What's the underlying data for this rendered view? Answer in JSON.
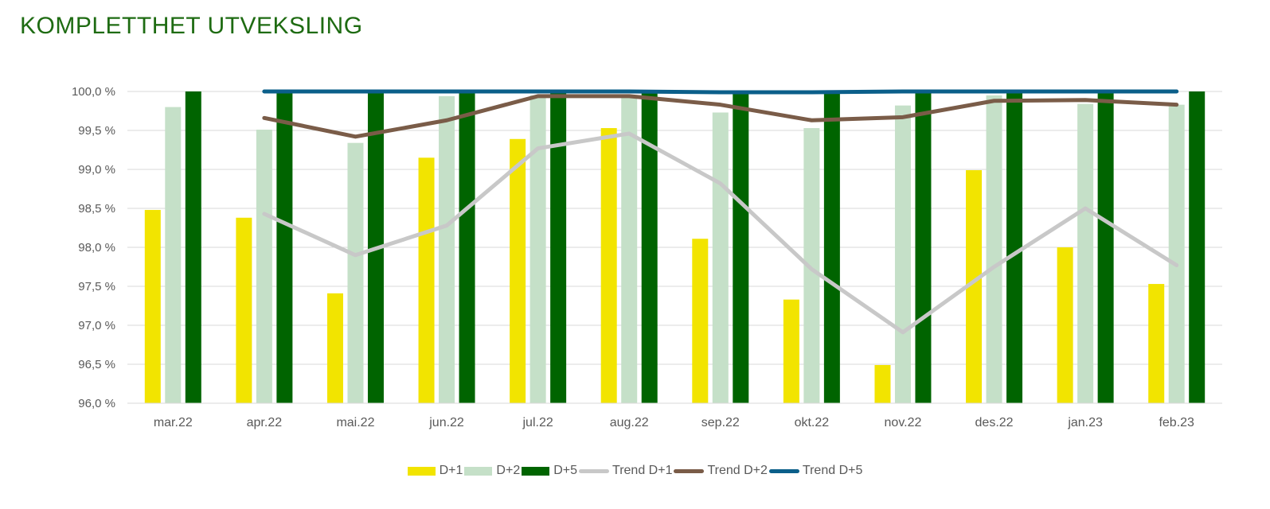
{
  "title": "KOMPLETTHET UTVEKSLING",
  "chart_data": {
    "type": "bar",
    "title": "KOMPLETTHET UTVEKSLING",
    "xlabel": "",
    "ylabel": "",
    "ylim": [
      96.0,
      100.0
    ],
    "y_ticks": [
      "96,0 %",
      "96,5 %",
      "97,0 %",
      "97,5 %",
      "98,0 %",
      "98,5 %",
      "99,0 %",
      "99,5 %",
      "100,0 %"
    ],
    "grid": true,
    "legend_position": "bottom",
    "categories": [
      "mar.22",
      "apr.22",
      "mai.22",
      "jun.22",
      "jul.22",
      "aug.22",
      "sep.22",
      "okt.22",
      "nov.22",
      "des.22",
      "jan.23",
      "feb.23"
    ],
    "series": [
      {
        "name": "D+1",
        "type": "bar",
        "color": "#f2e400",
        "values": [
          98.48,
          98.38,
          97.41,
          99.15,
          99.39,
          99.53,
          98.11,
          97.33,
          96.49,
          98.99,
          98.0,
          97.53
        ]
      },
      {
        "name": "D+2",
        "type": "bar",
        "color": "#c5e0c8",
        "values": [
          99.8,
          99.51,
          99.34,
          99.94,
          99.95,
          99.93,
          99.73,
          99.53,
          99.82,
          99.95,
          99.84,
          99.83
        ]
      },
      {
        "name": "D+5",
        "type": "bar",
        "color": "#006400",
        "values": [
          100.0,
          100.0,
          100.0,
          100.0,
          100.0,
          100.0,
          100.0,
          100.0,
          100.0,
          100.0,
          100.0,
          100.0
        ]
      },
      {
        "name": "Trend D+1",
        "type": "line",
        "color": "#c8c8c8",
        "values": [
          null,
          98.43,
          97.9,
          98.28,
          99.27,
          99.46,
          98.82,
          97.72,
          96.91,
          97.75,
          98.5,
          97.77
        ]
      },
      {
        "name": "Trend D+2",
        "type": "line",
        "color": "#7a5c48",
        "values": [
          null,
          99.66,
          99.42,
          99.63,
          99.94,
          99.94,
          99.83,
          99.63,
          99.67,
          99.88,
          99.89,
          99.83
        ]
      },
      {
        "name": "Trend D+5",
        "type": "line",
        "color": "#0b5f8a",
        "values": [
          null,
          100.0,
          100.0,
          100.0,
          100.0,
          100.0,
          99.99,
          99.99,
          100.0,
          100.0,
          100.0,
          100.0
        ]
      }
    ]
  }
}
